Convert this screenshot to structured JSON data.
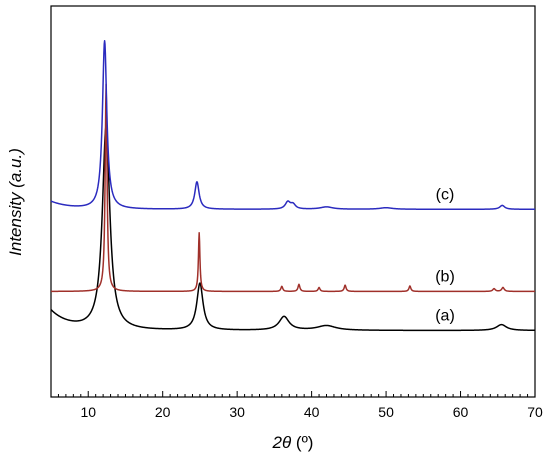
{
  "chart_data": {
    "type": "line",
    "xlabel_symbol": "2θ",
    "xlabel_unit": " (º)",
    "ylabel": "Intensity (a.u.)",
    "xlim": [
      5,
      70
    ],
    "ylim": [
      0,
      100
    ],
    "x_ticks": [
      "10",
      "20",
      "30",
      "40",
      "50",
      "60",
      "70"
    ],
    "y_ticks_labeled": false,
    "grid": false,
    "legend": "none",
    "annotations": [
      "(a)",
      "(b)",
      "(c)"
    ],
    "series": [
      {
        "label": "(a)",
        "color": "#000000",
        "baseline": 17,
        "tail": 5,
        "peaks": [
          {
            "x": 12.4,
            "h": 52,
            "w": 0.6
          },
          {
            "x": 25.0,
            "h": 12,
            "w": 0.5
          },
          {
            "x": 36.3,
            "h": 3.5,
            "w": 0.8
          },
          {
            "x": 42.0,
            "h": 1.2,
            "w": 1.5
          },
          {
            "x": 65.5,
            "h": 1.5,
            "w": 0.8
          }
        ]
      },
      {
        "label": "(b)",
        "color": "#a0302a",
        "baseline": 27,
        "tail": 0,
        "peaks": [
          {
            "x": 12.4,
            "h": 53,
            "w": 0.15
          },
          {
            "x": 24.9,
            "h": 15,
            "w": 0.12
          },
          {
            "x": 36.0,
            "h": 1.3,
            "w": 0.15
          },
          {
            "x": 38.3,
            "h": 1.8,
            "w": 0.15
          },
          {
            "x": 41.0,
            "h": 1.0,
            "w": 0.15
          },
          {
            "x": 44.5,
            "h": 1.6,
            "w": 0.15
          },
          {
            "x": 53.2,
            "h": 1.4,
            "w": 0.15
          },
          {
            "x": 64.5,
            "h": 0.7,
            "w": 0.2
          },
          {
            "x": 65.7,
            "h": 1.0,
            "w": 0.2
          }
        ]
      },
      {
        "label": "(c)",
        "color": "#2b2bbf",
        "baseline": 48,
        "tail": 2,
        "peaks": [
          {
            "x": 12.2,
            "h": 43,
            "w": 0.35
          },
          {
            "x": 24.6,
            "h": 7,
            "w": 0.35
          },
          {
            "x": 36.8,
            "h": 1.8,
            "w": 0.4
          },
          {
            "x": 37.5,
            "h": 1.2,
            "w": 0.4
          },
          {
            "x": 42.0,
            "h": 0.6,
            "w": 1.0
          },
          {
            "x": 50.0,
            "h": 0.4,
            "w": 1.0
          },
          {
            "x": 65.6,
            "h": 1.0,
            "w": 0.4
          }
        ]
      }
    ]
  }
}
